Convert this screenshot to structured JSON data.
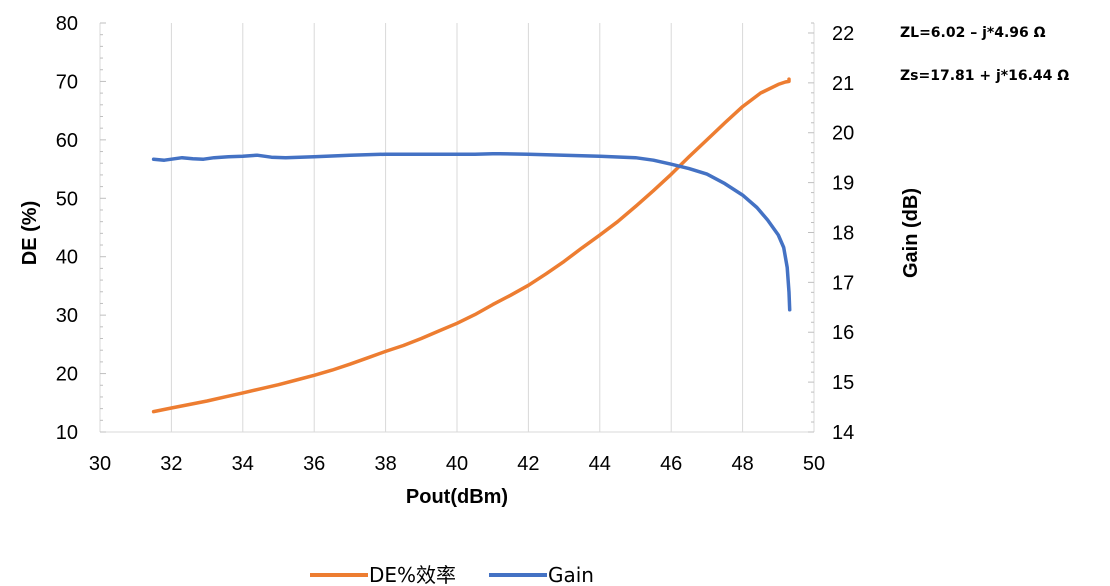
{
  "chart_data": {
    "type": "line",
    "xlabel": "Pout(dBm)",
    "ylabel_left": "DE (%)",
    "ylabel_right": "Gain (dB)",
    "xlim": [
      30,
      50
    ],
    "xticks": [
      30,
      32,
      34,
      36,
      38,
      40,
      42,
      44,
      46,
      48,
      50
    ],
    "ylim_left": [
      10,
      80
    ],
    "yticks_left": [
      10,
      20,
      30,
      40,
      50,
      60,
      70,
      80
    ],
    "ylim_right": [
      14,
      22.2
    ],
    "yticks_right": [
      14,
      15,
      16,
      17,
      18,
      19,
      20,
      21,
      22
    ],
    "grid": "vertical",
    "legend_position": "bottom",
    "annotations": [
      "ZL=6.02 – j*4.96 Ω",
      "Zs=17.81 + j*16.44 Ω"
    ],
    "colors": {
      "DE": "#ED7D31",
      "Gain": "#4472C4"
    },
    "series": [
      {
        "name": "DE%效率",
        "axis": "left",
        "x": [
          31.5,
          32,
          32.5,
          33,
          33.5,
          34,
          34.5,
          35,
          35.5,
          36,
          36.5,
          37,
          37.5,
          38,
          38.5,
          39,
          39.5,
          40,
          40.5,
          41,
          41.5,
          42,
          42.5,
          43,
          43.5,
          44,
          44.5,
          45,
          45.5,
          46,
          46.5,
          47,
          47.5,
          48,
          48.5,
          49,
          49.2,
          49.3,
          49.3
        ],
        "y": [
          13.5,
          14.1,
          14.7,
          15.3,
          16.0,
          16.7,
          17.4,
          18.1,
          18.9,
          19.7,
          20.6,
          21.6,
          22.7,
          23.8,
          24.8,
          26.0,
          27.3,
          28.6,
          30.1,
          31.8,
          33.4,
          35.1,
          37.1,
          39.2,
          41.5,
          43.7,
          46.0,
          48.6,
          51.3,
          54.1,
          57.1,
          60.0,
          62.9,
          65.7,
          68.0,
          69.5,
          69.9,
          70.0,
          70.4
        ]
      },
      {
        "name": "Gain",
        "axis": "right",
        "x": [
          31.5,
          31.8,
          32,
          32.3,
          32.6,
          32.9,
          33.2,
          33.6,
          34,
          34.4,
          34.8,
          35.2,
          36,
          37,
          38,
          39,
          40,
          40.5,
          41,
          41.2,
          42,
          43,
          44,
          45,
          45.5,
          46,
          46.5,
          47,
          47.5,
          48,
          48.4,
          48.7,
          49.0,
          49.15,
          49.25,
          49.3,
          49.32
        ],
        "y": [
          19.47,
          19.45,
          19.47,
          19.5,
          19.48,
          19.47,
          19.5,
          19.52,
          19.53,
          19.55,
          19.51,
          19.5,
          19.52,
          19.55,
          19.57,
          19.57,
          19.57,
          19.57,
          19.58,
          19.58,
          19.57,
          19.55,
          19.53,
          19.5,
          19.45,
          19.37,
          19.28,
          19.17,
          18.98,
          18.75,
          18.5,
          18.25,
          17.95,
          17.7,
          17.3,
          16.8,
          16.45
        ]
      }
    ]
  }
}
